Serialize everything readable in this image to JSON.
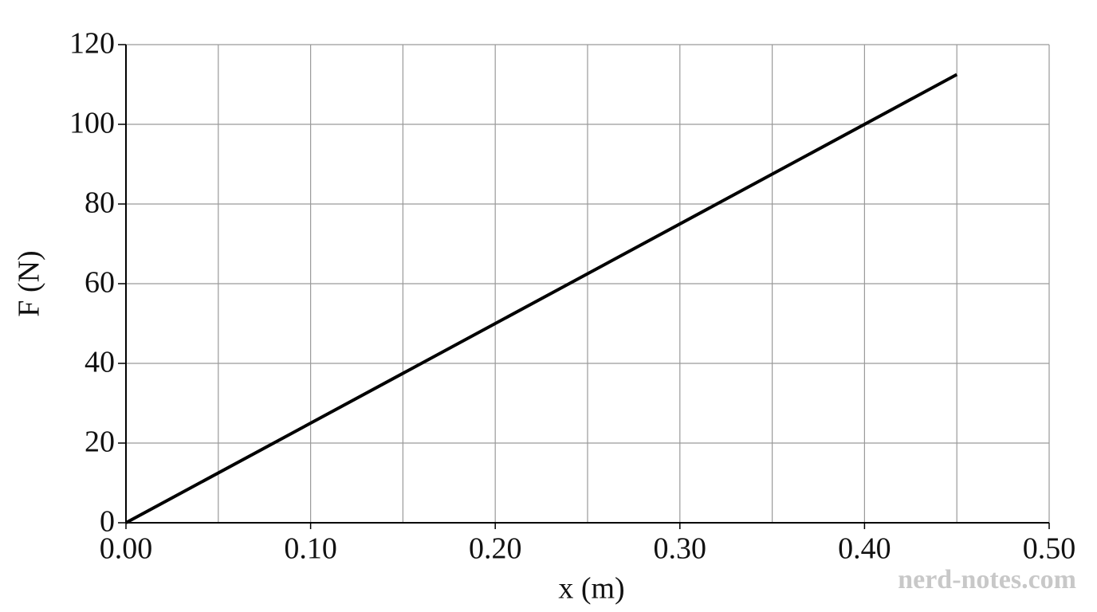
{
  "chart_data": {
    "type": "line",
    "xlabel": "x (m)",
    "ylabel": "F (N)",
    "x": [
      0,
      0.45
    ],
    "series": [
      {
        "color": "#000000",
        "values": [
          0,
          112.5
        ]
      }
    ],
    "xlim": [
      0,
      0.5
    ],
    "xticks": [
      {
        "value": 0,
        "label": "0.00"
      },
      {
        "value": 0.1,
        "label": "0.10"
      },
      {
        "value": 0.2,
        "label": "0.20"
      },
      {
        "value": 0.3,
        "label": "0.30"
      },
      {
        "value": 0.4,
        "label": "0.40"
      },
      {
        "value": 0.5,
        "label": "0.50"
      }
    ],
    "xminorticks": [
      0.05,
      0.15,
      0.25,
      0.35,
      0.45
    ],
    "ylim": [
      0,
      120
    ],
    "yticks": [
      0,
      20,
      40,
      60,
      80,
      100,
      120
    ],
    "grid": true,
    "watermark": "nerd-notes.com"
  }
}
